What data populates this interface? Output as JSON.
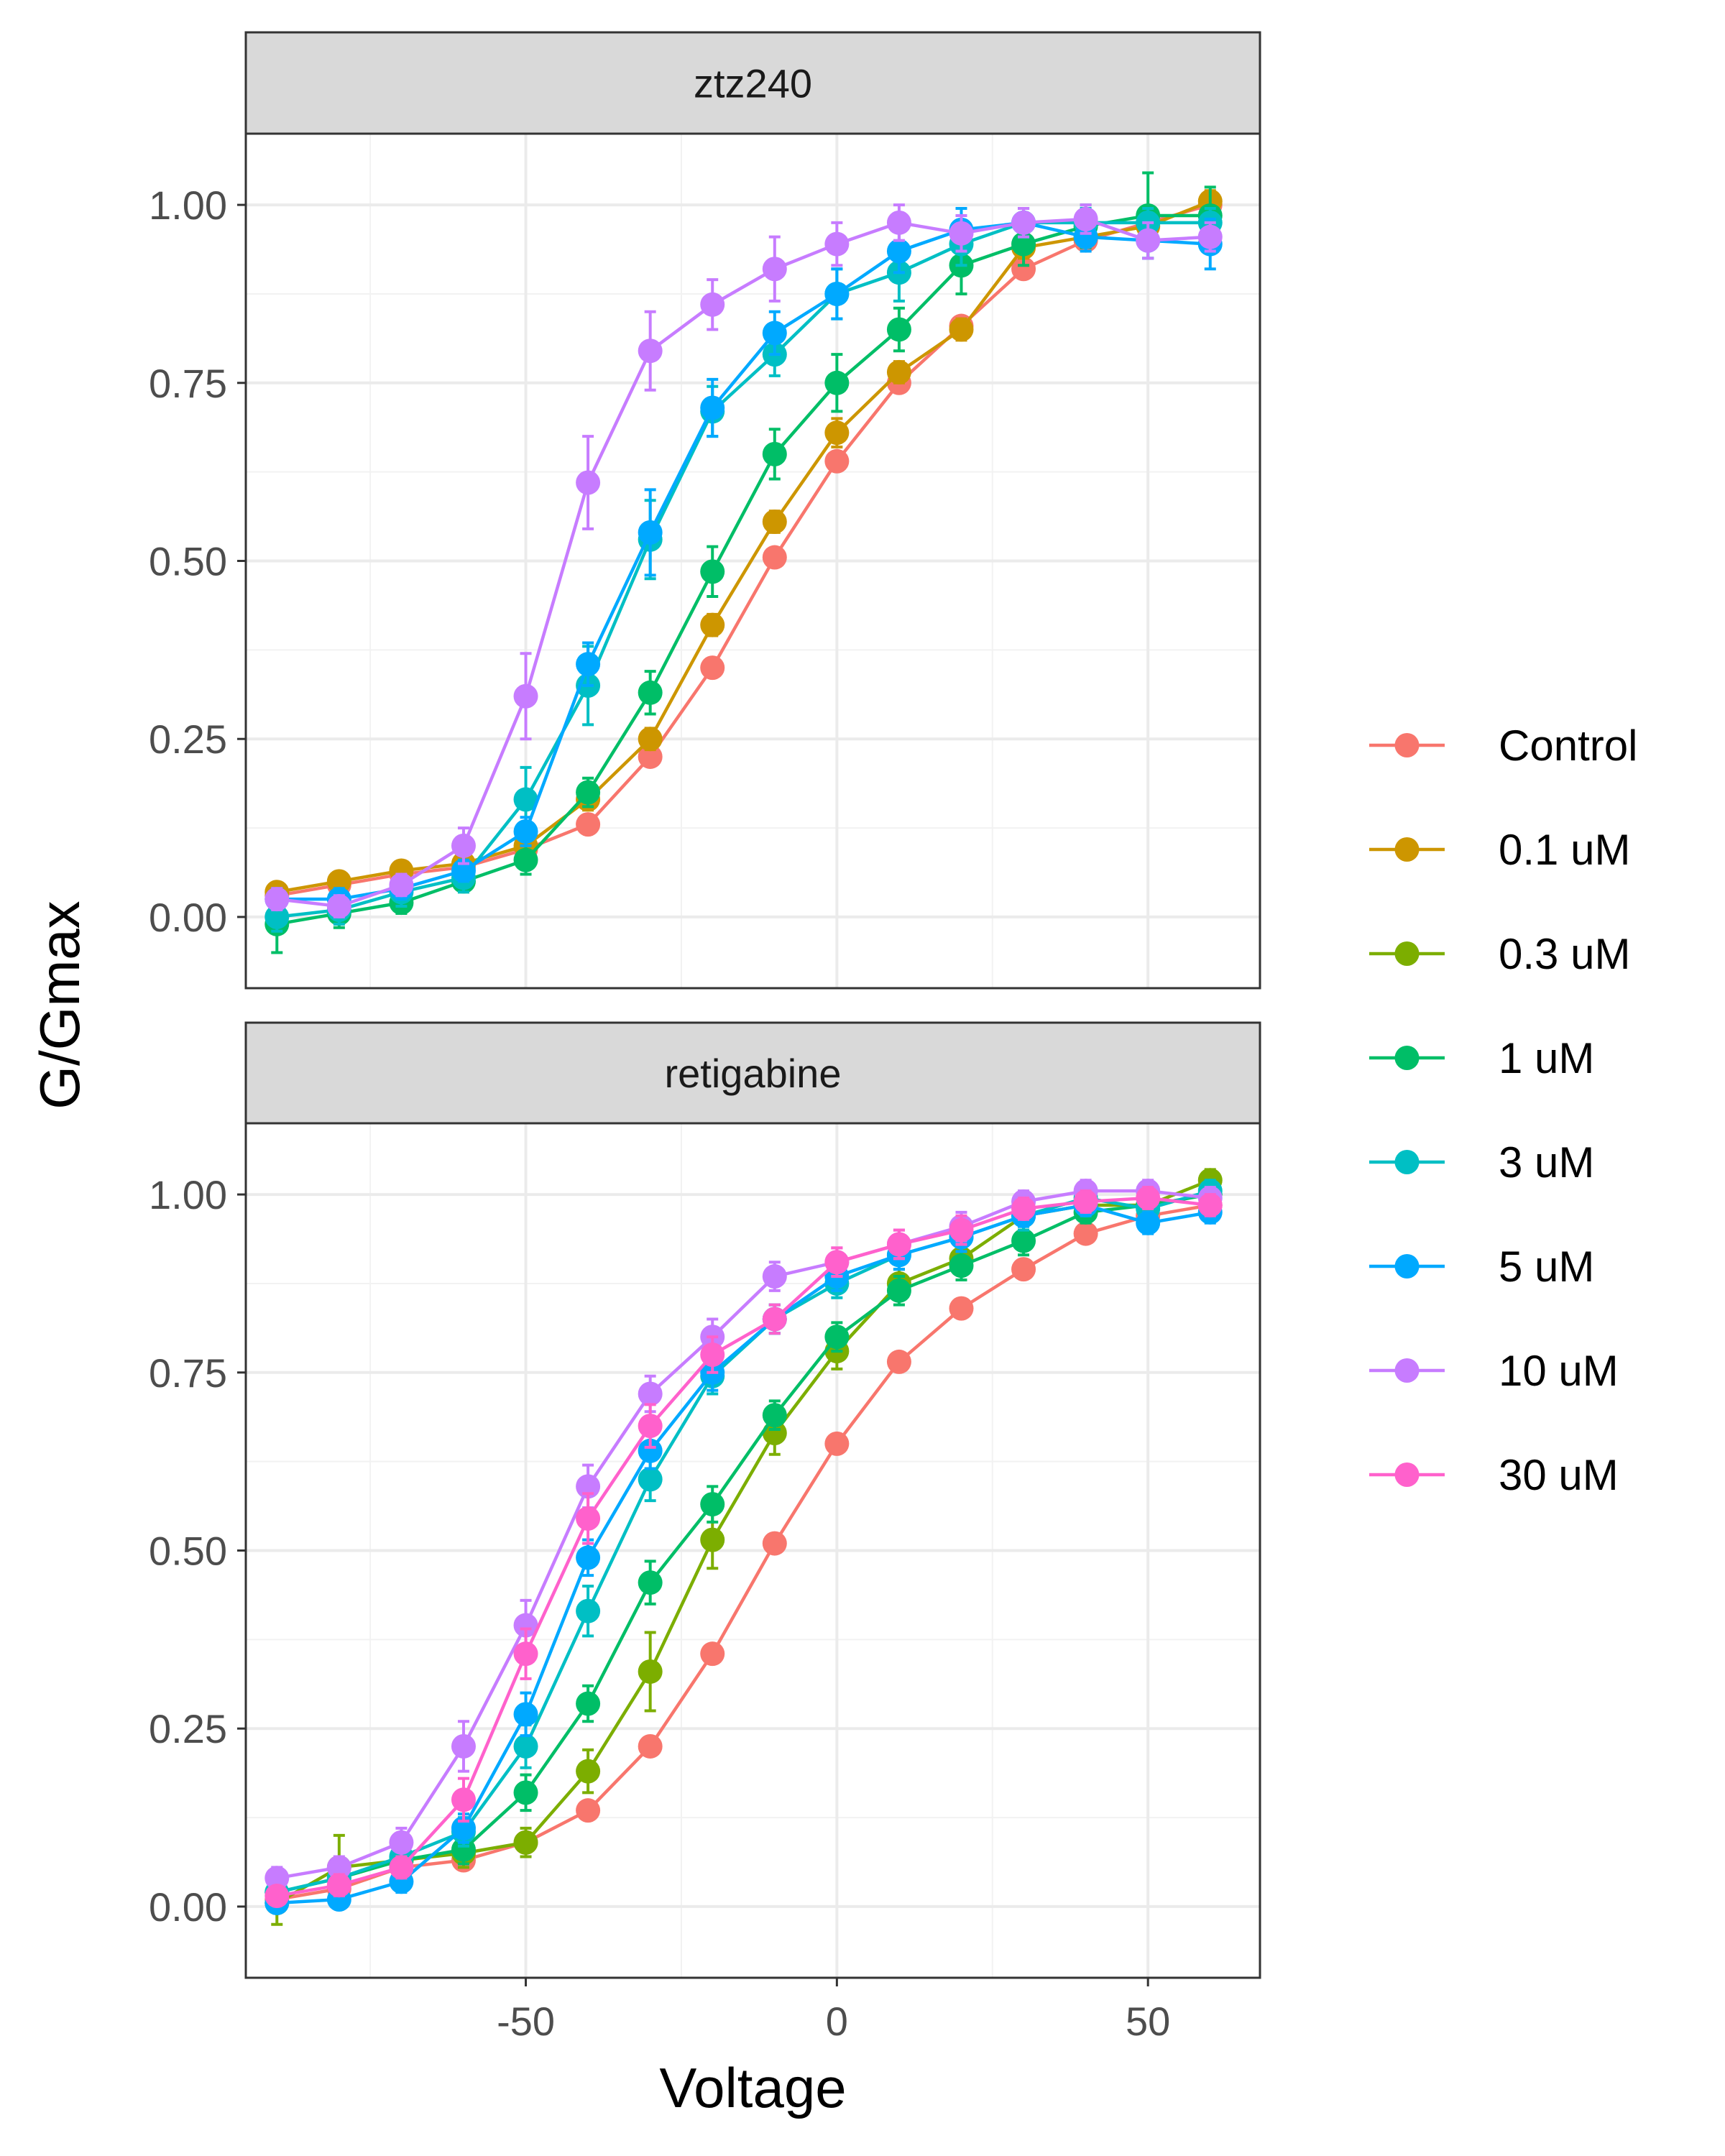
{
  "chart_data": {
    "type": "line",
    "xlabel": "Voltage",
    "ylabel": "G/Gmax",
    "xlim": [
      -95,
      68
    ],
    "ylim": [
      -0.1,
      1.1
    ],
    "x_ticks": [
      -50,
      0,
      50
    ],
    "x_tick_labels": [
      "-50",
      "0",
      "50"
    ],
    "y_ticks": [
      0,
      0.25,
      0.5,
      0.75,
      1.0
    ],
    "y_tick_labels": [
      "0.00",
      "0.25",
      "0.50",
      "0.75",
      "1.00"
    ],
    "grid": true,
    "legend_position": "right",
    "x": [
      -90,
      -80,
      -70,
      -60,
      -50,
      -40,
      -30,
      -20,
      -10,
      0,
      10,
      20,
      30,
      40,
      50,
      60
    ],
    "legend": [
      {
        "name": "Control",
        "color": "#F8766D"
      },
      {
        "name": "0.1 uM",
        "color": "#CD9600"
      },
      {
        "name": "0.3 uM",
        "color": "#7CAE00"
      },
      {
        "name": "1 uM",
        "color": "#00BE67"
      },
      {
        "name": "3 uM",
        "color": "#00BFC4"
      },
      {
        "name": "5 uM",
        "color": "#00A9FF"
      },
      {
        "name": "10 uM",
        "color": "#C77CFF"
      },
      {
        "name": "30 uM",
        "color": "#FF61CC"
      }
    ],
    "panels": [
      {
        "title": "ztz240",
        "series": [
          {
            "name": "Control",
            "values": [
              0.03,
              0.045,
              0.06,
              0.07,
              0.095,
              0.13,
              0.225,
              0.35,
              0.505,
              0.64,
              0.75,
              0.83,
              0.91,
              0.95,
              0.975,
              1.0
            ],
            "err": [
              0.01,
              0.01,
              0.01,
              0.01,
              0.01,
              0.01,
              0.01,
              0.01,
              0.01,
              0.01,
              0.01,
              0.01,
              0.01,
              0.01,
              0.01,
              0.01
            ]
          },
          {
            "name": "0.1 uM",
            "values": [
              0.035,
              0.05,
              0.065,
              0.075,
              0.1,
              0.165,
              0.25,
              0.41,
              0.555,
              0.68,
              0.765,
              0.825,
              0.94,
              0.955,
              0.97,
              1.005
            ],
            "err": [
              0.01,
              0.01,
              0.01,
              0.01,
              0.01,
              0.015,
              0.015,
              0.015,
              0.015,
              0.02,
              0.015,
              0.015,
              0.015,
              0.015,
              0.015,
              0.015
            ]
          },
          {
            "name": "1 uM",
            "values": [
              -0.01,
              0.005,
              0.02,
              0.05,
              0.08,
              0.175,
              0.315,
              0.485,
              0.65,
              0.75,
              0.825,
              0.915,
              0.945,
              0.97,
              0.985,
              0.985
            ],
            "err": [
              0.04,
              0.02,
              0.015,
              0.015,
              0.02,
              0.02,
              0.03,
              0.035,
              0.035,
              0.04,
              0.03,
              0.04,
              0.03,
              0.03,
              0.06,
              0.04
            ]
          },
          {
            "name": "3 uM",
            "values": [
              0.0,
              0.01,
              0.035,
              0.055,
              0.165,
              0.325,
              0.53,
              0.71,
              0.79,
              0.875,
              0.905,
              0.945,
              0.975,
              0.975,
              0.975,
              0.975
            ],
            "err": [
              0.02,
              0.02,
              0.02,
              0.02,
              0.045,
              0.055,
              0.055,
              0.035,
              0.03,
              0.035,
              0.04,
              0.03,
              0.02,
              0.02,
              0.02,
              0.02
            ]
          },
          {
            "name": "5 uM",
            "values": [
              0.025,
              0.025,
              0.04,
              0.065,
              0.12,
              0.355,
              0.54,
              0.715,
              0.82,
              0.875,
              0.935,
              0.965,
              0.975,
              0.955,
              0.95,
              0.945
            ],
            "err": [
              0.015,
              0.015,
              0.015,
              0.015,
              0.02,
              0.03,
              0.06,
              0.04,
              0.03,
              0.035,
              0.03,
              0.03,
              0.02,
              0.02,
              0.025,
              0.035
            ]
          },
          {
            "name": "10 uM",
            "values": [
              0.025,
              0.015,
              0.045,
              0.1,
              0.31,
              0.61,
              0.795,
              0.86,
              0.91,
              0.945,
              0.975,
              0.96,
              0.975,
              0.98,
              0.95,
              0.955
            ],
            "err": [
              0.015,
              0.015,
              0.015,
              0.025,
              0.06,
              0.065,
              0.055,
              0.035,
              0.045,
              0.03,
              0.025,
              0.025,
              0.02,
              0.02,
              0.025,
              0.02
            ]
          }
        ]
      },
      {
        "title": "retigabine",
        "series": [
          {
            "name": "Control",
            "values": [
              0.01,
              0.025,
              0.055,
              0.065,
              0.09,
              0.135,
              0.225,
              0.355,
              0.51,
              0.65,
              0.765,
              0.84,
              0.895,
              0.945,
              0.97,
              0.985
            ],
            "err": [
              0.01,
              0.01,
              0.01,
              0.01,
              0.01,
              0.01,
              0.01,
              0.01,
              0.01,
              0.01,
              0.01,
              0.01,
              0.01,
              0.01,
              0.01,
              0.01
            ]
          },
          {
            "name": "0.3 uM",
            "values": [
              0.005,
              0.055,
              0.065,
              0.075,
              0.09,
              0.19,
              0.33,
              0.515,
              0.665,
              0.78,
              0.875,
              0.91,
              0.97,
              0.985,
              0.985,
              1.02
            ],
            "err": [
              0.03,
              0.045,
              0.02,
              0.02,
              0.02,
              0.03,
              0.055,
              0.04,
              0.03,
              0.025,
              0.02,
              0.02,
              0.02,
              0.015,
              0.015,
              0.015
            ]
          },
          {
            "name": "1 uM",
            "values": [
              0.02,
              0.04,
              0.065,
              0.08,
              0.16,
              0.285,
              0.455,
              0.565,
              0.69,
              0.8,
              0.865,
              0.9,
              0.935,
              0.975,
              0.985,
              1.0
            ],
            "err": [
              0.015,
              0.015,
              0.02,
              0.02,
              0.025,
              0.025,
              0.03,
              0.025,
              0.02,
              0.02,
              0.02,
              0.02,
              0.02,
              0.015,
              0.015,
              0.015
            ]
          },
          {
            "name": "3 uM",
            "values": [
              0.02,
              0.04,
              0.07,
              0.105,
              0.225,
              0.415,
              0.6,
              0.745,
              0.825,
              0.875,
              0.915,
              0.94,
              0.97,
              0.995,
              0.98,
              1.005
            ],
            "err": [
              0.015,
              0.015,
              0.015,
              0.02,
              0.03,
              0.035,
              0.03,
              0.025,
              0.02,
              0.02,
              0.02,
              0.02,
              0.02,
              0.015,
              0.015,
              0.015
            ]
          },
          {
            "name": "5 uM",
            "values": [
              0.005,
              0.01,
              0.035,
              0.11,
              0.27,
              0.49,
              0.64,
              0.75,
              0.825,
              0.885,
              0.915,
              0.94,
              0.97,
              0.985,
              0.96,
              0.975
            ],
            "err": [
              0.01,
              0.01,
              0.015,
              0.02,
              0.03,
              0.025,
              0.025,
              0.025,
              0.02,
              0.02,
              0.02,
              0.02,
              0.015,
              0.015,
              0.015,
              0.015
            ]
          },
          {
            "name": "10 uM",
            "values": [
              0.04,
              0.055,
              0.09,
              0.225,
              0.395,
              0.59,
              0.72,
              0.8,
              0.885,
              0.905,
              0.93,
              0.955,
              0.99,
              1.005,
              1.005,
              0.995
            ],
            "err": [
              0.015,
              0.015,
              0.02,
              0.035,
              0.035,
              0.03,
              0.025,
              0.025,
              0.02,
              0.02,
              0.02,
              0.02,
              0.015,
              0.015,
              0.015,
              0.015
            ]
          },
          {
            "name": "30 uM",
            "values": [
              0.015,
              0.03,
              0.055,
              0.15,
              0.355,
              0.545,
              0.675,
              0.775,
              0.825,
              0.905,
              0.93,
              0.95,
              0.98,
              0.99,
              0.995,
              0.985
            ],
            "err": [
              0.01,
              0.015,
              0.015,
              0.03,
              0.035,
              0.035,
              0.03,
              0.025,
              0.02,
              0.02,
              0.02,
              0.02,
              0.015,
              0.015,
              0.015,
              0.015
            ]
          }
        ]
      }
    ]
  }
}
